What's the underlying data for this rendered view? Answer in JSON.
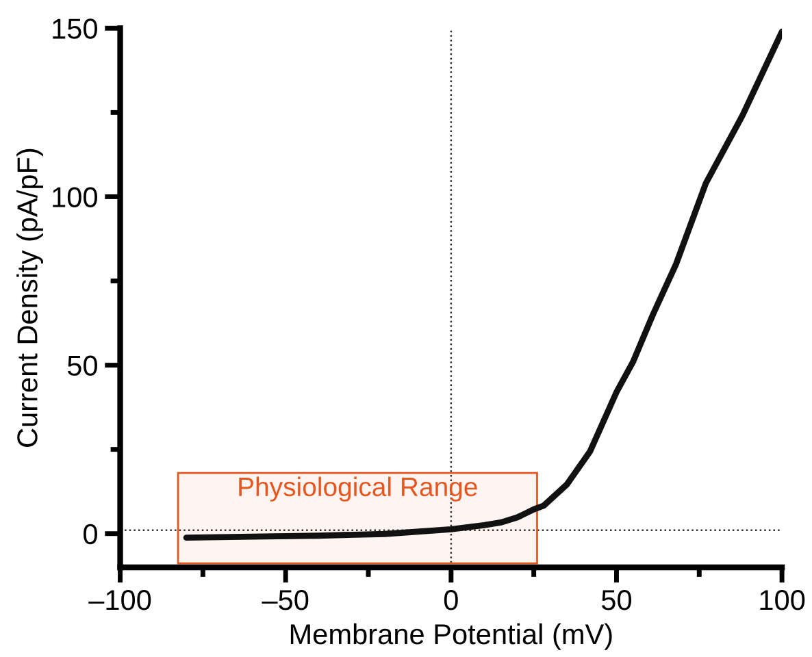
{
  "chart_data": {
    "type": "line",
    "xlabel": "Membrane Potential (mV)",
    "ylabel": "Current Density (pA/pF)",
    "xlim": [
      -100,
      100
    ],
    "ylim": [
      -10,
      150
    ],
    "xticks": [
      {
        "value": -100,
        "label": "–100"
      },
      {
        "value": -75,
        "label": null
      },
      {
        "value": -50,
        "label": "–50"
      },
      {
        "value": -25,
        "label": null
      },
      0,
      {
        "value": 25,
        "label": null
      },
      50,
      {
        "value": 75,
        "label": null
      },
      100
    ],
    "yticks": [
      0,
      {
        "value": 25,
        "label": null
      },
      50,
      {
        "value": 75,
        "label": null
      },
      100,
      {
        "value": 125,
        "label": null
      },
      150
    ],
    "grid": false,
    "marker": "none",
    "line_style": "solid",
    "series": [
      {
        "color": "#111111",
        "x": [
          -80,
          -60,
          -40,
          -20,
          0,
          10,
          15,
          20,
          25,
          28,
          35,
          42,
          50,
          55,
          61,
          68,
          77,
          88,
          100
        ],
        "values": [
          -1.2,
          -0.9,
          -0.6,
          -0.1,
          1.3,
          2.5,
          3.3,
          4.8,
          7.2,
          8.3,
          14.6,
          24.4,
          42,
          51,
          65,
          80,
          104,
          124,
          149
        ]
      }
    ],
    "ref_lines": [
      {
        "axis": "x",
        "value": 0,
        "line_style": "dotted",
        "color": "#333333"
      },
      {
        "axis": "y",
        "value": 1,
        "line_style": "dotted",
        "color": "#333333"
      }
    ],
    "bands": [
      {
        "axis": "x",
        "from": -82.5,
        "to": 26,
        "label": "Physiological Range",
        "color": "#e8561f"
      }
    ]
  }
}
